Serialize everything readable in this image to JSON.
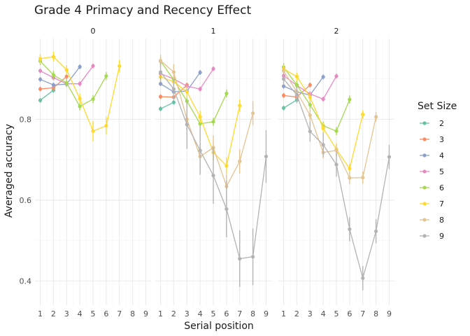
{
  "chart_data": {
    "type": "line",
    "title": "Grade 4 Primacy and Recency Effect",
    "xlabel": "Serial position",
    "ylabel": "Averaged accuracy",
    "x_ticks": [
      1,
      2,
      3,
      4,
      5,
      6,
      7,
      8,
      9
    ],
    "xlim": [
      0.6,
      9.4
    ],
    "ylim": [
      0.34,
      1.0
    ],
    "y_ticks": [
      0.4,
      0.6,
      0.8
    ],
    "y_tick_labels": [
      "0.4",
      "0.6",
      "0.8"
    ],
    "grid": true,
    "legend": {
      "title": "Set Size",
      "position": "right"
    },
    "panels": [
      {
        "label": "0",
        "series": [
          {
            "name": "2",
            "color": "#66C2A5",
            "points": [
              [
                1,
                0.847,
                0.006
              ],
              [
                2,
                0.872,
                0.006
              ]
            ]
          },
          {
            "name": "3",
            "color": "#FC8D62",
            "points": [
              [
                1,
                0.875,
                0.006
              ],
              [
                2,
                0.878,
                0.006
              ],
              [
                3,
                0.906,
                0.006
              ]
            ]
          },
          {
            "name": "4",
            "color": "#8DA0CB",
            "points": [
              [
                1,
                0.899,
                0.006
              ],
              [
                2,
                0.885,
                0.006
              ],
              [
                3,
                0.887,
                0.006
              ],
              [
                4,
                0.93,
                0.006
              ]
            ]
          },
          {
            "name": "5",
            "color": "#E78AC3",
            "points": [
              [
                1,
                0.92,
                0.006
              ],
              [
                2,
                0.903,
                0.006
              ],
              [
                3,
                0.888,
                0.006
              ],
              [
                4,
                0.888,
                0.006
              ],
              [
                5,
                0.932,
                0.006
              ]
            ]
          },
          {
            "name": "6",
            "color": "#A6D854",
            "points": [
              [
                1,
                0.944,
                0.01
              ],
              [
                2,
                0.91,
                0.01
              ],
              [
                3,
                0.89,
                0.01
              ],
              [
                4,
                0.832,
                0.01
              ],
              [
                5,
                0.85,
                0.01
              ],
              [
                6,
                0.907,
                0.01
              ]
            ]
          },
          {
            "name": "7",
            "color": "#FFD92F",
            "points": [
              [
                1,
                0.95,
                0.012
              ],
              [
                2,
                0.955,
                0.012
              ],
              [
                3,
                0.922,
                0.012
              ],
              [
                4,
                0.851,
                0.012
              ],
              [
                5,
                0.771,
                0.025
              ],
              [
                6,
                0.784,
                0.022
              ],
              [
                7,
                0.932,
                0.015
              ]
            ]
          }
        ]
      },
      {
        "label": "1",
        "series": [
          {
            "name": "2",
            "color": "#66C2A5",
            "points": [
              [
                1,
                0.826,
                0.006
              ],
              [
                2,
                0.842,
                0.006
              ]
            ]
          },
          {
            "name": "3",
            "color": "#FC8D62",
            "points": [
              [
                1,
                0.856,
                0.006
              ],
              [
                2,
                0.855,
                0.006
              ],
              [
                3,
                0.885,
                0.006
              ]
            ]
          },
          {
            "name": "4",
            "color": "#8DA0CB",
            "points": [
              [
                1,
                0.888,
                0.006
              ],
              [
                2,
                0.868,
                0.006
              ],
              [
                3,
                0.87,
                0.006
              ],
              [
                4,
                0.916,
                0.006
              ]
            ]
          },
          {
            "name": "5",
            "color": "#E78AC3",
            "points": [
              [
                1,
                0.913,
                0.006
              ],
              [
                2,
                0.9,
                0.006
              ],
              [
                3,
                0.882,
                0.006
              ],
              [
                4,
                0.875,
                0.006
              ],
              [
                5,
                0.925,
                0.006
              ]
            ]
          },
          {
            "name": "6",
            "color": "#A6D854",
            "points": [
              [
                1,
                0.944,
                0.01
              ],
              [
                2,
                0.898,
                0.01
              ],
              [
                3,
                0.845,
                0.012
              ],
              [
                4,
                0.789,
                0.01
              ],
              [
                5,
                0.794,
                0.01
              ],
              [
                6,
                0.864,
                0.01
              ]
            ]
          },
          {
            "name": "7",
            "color": "#FFD92F",
            "points": [
              [
                1,
                0.905,
                0.012
              ],
              [
                2,
                0.893,
                0.012
              ],
              [
                3,
                0.868,
                0.015
              ],
              [
                4,
                0.806,
                0.015
              ],
              [
                5,
                0.718,
                0.02
              ],
              [
                6,
                0.685,
                0.02
              ],
              [
                7,
                0.834,
                0.015
              ]
            ]
          },
          {
            "name": "8",
            "color": "#E5C494",
            "points": [
              [
                1,
                0.945,
                0.015
              ],
              [
                2,
                0.917,
                0.02
              ],
              [
                3,
                0.8,
                0.025
              ],
              [
                4,
                0.708,
                0.03
              ],
              [
                5,
                0.73,
                0.03
              ],
              [
                6,
                0.634,
                0.03
              ],
              [
                7,
                0.696,
                0.03
              ],
              [
                8,
                0.815,
                0.03
              ]
            ]
          },
          {
            "name": "9",
            "color": "#B3B3B3",
            "points": [
              [
                1,
                0.917,
                0.025
              ],
              [
                2,
                0.875,
                0.025
              ],
              [
                3,
                0.787,
                0.06
              ],
              [
                4,
                0.723,
                0.06
              ],
              [
                5,
                0.661,
                0.07
              ],
              [
                6,
                0.578,
                0.07
              ],
              [
                7,
                0.455,
                0.07
              ],
              [
                8,
                0.46,
                0.07
              ],
              [
                9,
                0.708,
                0.065
              ]
            ]
          }
        ]
      },
      {
        "label": "2",
        "series": [
          {
            "name": "2",
            "color": "#66C2A5",
            "points": [
              [
                1,
                0.828,
                0.006
              ],
              [
                2,
                0.848,
                0.006
              ]
            ]
          },
          {
            "name": "3",
            "color": "#FC8D62",
            "points": [
              [
                1,
                0.859,
                0.006
              ],
              [
                2,
                0.855,
                0.006
              ],
              [
                3,
                0.885,
                0.006
              ]
            ]
          },
          {
            "name": "4",
            "color": "#8DA0CB",
            "points": [
              [
                1,
                0.882,
                0.006
              ],
              [
                2,
                0.868,
                0.006
              ],
              [
                3,
                0.86,
                0.006
              ],
              [
                4,
                0.905,
                0.006
              ]
            ]
          },
          {
            "name": "5",
            "color": "#E78AC3",
            "points": [
              [
                1,
                0.908,
                0.006
              ],
              [
                2,
                0.884,
                0.006
              ],
              [
                3,
                0.863,
                0.006
              ],
              [
                4,
                0.85,
                0.006
              ],
              [
                5,
                0.907,
                0.006
              ]
            ]
          },
          {
            "name": "6",
            "color": "#A6D854",
            "points": [
              [
                1,
                0.929,
                0.01
              ],
              [
                2,
                0.885,
                0.01
              ],
              [
                3,
                0.836,
                0.01
              ],
              [
                4,
                0.784,
                0.01
              ],
              [
                5,
                0.771,
                0.01
              ],
              [
                6,
                0.849,
                0.01
              ]
            ]
          },
          {
            "name": "7",
            "color": "#FFD92F",
            "points": [
              [
                1,
                0.925,
                0.01
              ],
              [
                2,
                0.906,
                0.01
              ],
              [
                3,
                0.855,
                0.012
              ],
              [
                4,
                0.778,
                0.012
              ],
              [
                5,
                0.726,
                0.015
              ],
              [
                6,
                0.678,
                0.012
              ],
              [
                7,
                0.812,
                0.01
              ]
            ]
          },
          {
            "name": "8",
            "color": "#E5C494",
            "points": [
              [
                1,
                0.92,
                0.01
              ],
              [
                2,
                0.868,
                0.012
              ],
              [
                3,
                0.81,
                0.015
              ],
              [
                4,
                0.718,
                0.015
              ],
              [
                5,
                0.723,
                0.015
              ],
              [
                6,
                0.655,
                0.015
              ],
              [
                7,
                0.656,
                0.015
              ],
              [
                8,
                0.806,
                0.012
              ]
            ]
          },
          {
            "name": "9",
            "color": "#B3B3B3",
            "points": [
              [
                1,
                0.9,
                0.015
              ],
              [
                2,
                0.86,
                0.02
              ],
              [
                3,
                0.77,
                0.025
              ],
              [
                4,
                0.737,
                0.03
              ],
              [
                5,
                0.688,
                0.03
              ],
              [
                6,
                0.528,
                0.03
              ],
              [
                7,
                0.407,
                0.03
              ],
              [
                8,
                0.523,
                0.03
              ],
              [
                9,
                0.707,
                0.03
              ]
            ]
          }
        ]
      }
    ],
    "legend_items": [
      {
        "label": "2",
        "color": "#66C2A5"
      },
      {
        "label": "3",
        "color": "#FC8D62"
      },
      {
        "label": "4",
        "color": "#8DA0CB"
      },
      {
        "label": "5",
        "color": "#E78AC3"
      },
      {
        "label": "6",
        "color": "#A6D854"
      },
      {
        "label": "7",
        "color": "#FFD92F"
      },
      {
        "label": "8",
        "color": "#E5C494"
      },
      {
        "label": "9",
        "color": "#B3B3B3"
      }
    ]
  }
}
